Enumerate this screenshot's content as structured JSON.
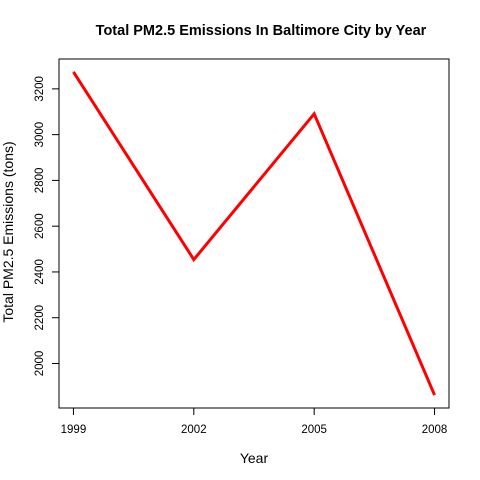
{
  "chart_data": {
    "type": "line",
    "title": "Total PM2.5 Emissions In Baltimore City by Year",
    "xlabel": "Year",
    "ylabel": "Total PM2.5 Emissions (tons)",
    "x": [
      1999,
      2002,
      2005,
      2008
    ],
    "series": [
      {
        "values": [
          3274,
          2454,
          3091,
          1862
        ]
      }
    ],
    "xlim": [
      1999,
      2008
    ],
    "ylim": [
      1862,
      3274
    ],
    "x_ticks": [
      1999,
      2002,
      2005,
      2008
    ],
    "y_ticks": [
      2000,
      2200,
      2400,
      2600,
      2800,
      3000,
      3200
    ],
    "grid": false,
    "legend": "none",
    "line_color": "#ff0000"
  }
}
